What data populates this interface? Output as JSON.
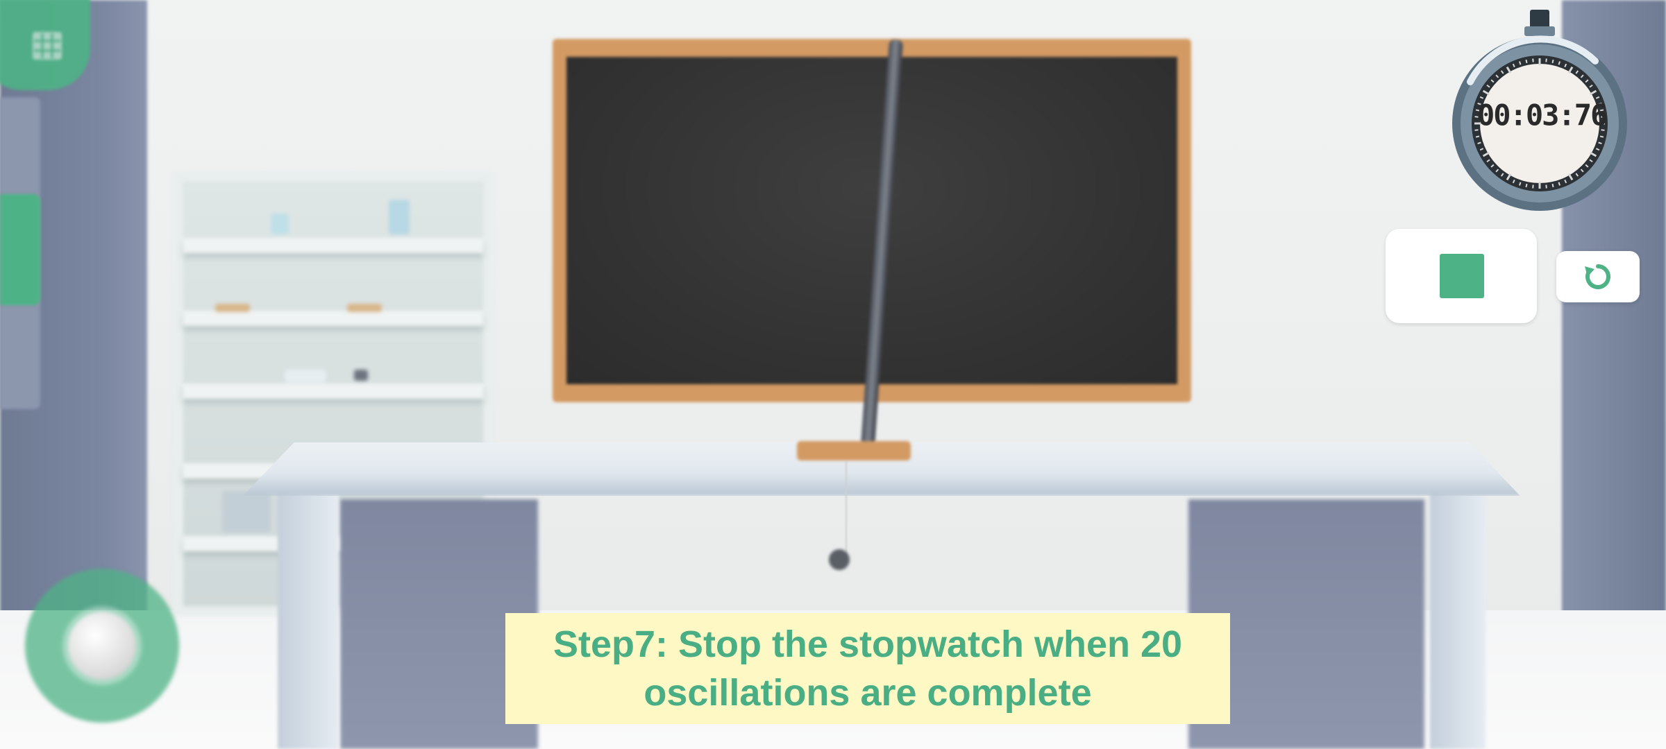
{
  "scene": {
    "name": "physics-lab-pendulum"
  },
  "hud": {
    "menu_icon": "grid-menu-icon",
    "joystick_icon": "joystick-icon",
    "accent_color": "#4db386"
  },
  "stopwatch": {
    "time": "00:03:76",
    "icon": "stopwatch-icon"
  },
  "controls": {
    "stop_icon": "stop-square-icon",
    "reset_icon": "reset-icon"
  },
  "instruction": {
    "text": "Step7: Stop the stopwatch when 20 oscillations are complete",
    "background": "#fdf8c4",
    "color": "#4aae85"
  }
}
